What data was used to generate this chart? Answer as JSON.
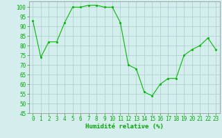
{
  "x": [
    0,
    1,
    2,
    3,
    4,
    5,
    6,
    7,
    8,
    9,
    10,
    11,
    12,
    13,
    14,
    15,
    16,
    17,
    18,
    19,
    20,
    21,
    22,
    23
  ],
  "y": [
    93,
    74,
    82,
    82,
    92,
    100,
    100,
    101,
    101,
    100,
    100,
    92,
    70,
    68,
    56,
    54,
    60,
    63,
    63,
    75,
    78,
    80,
    84,
    78
  ],
  "line_color": "#00bb00",
  "marker_color": "#00bb00",
  "bg_color": "#d4eeee",
  "grid_color": "#aacccc",
  "xlabel": "Humidité relative (%)",
  "xlabel_color": "#00aa00",
  "ylim": [
    45,
    103
  ],
  "yticks": [
    45,
    50,
    55,
    60,
    65,
    70,
    75,
    80,
    85,
    90,
    95,
    100
  ],
  "xlim": [
    -0.5,
    23.5
  ],
  "tick_fontsize": 5.5,
  "xlabel_fontsize": 6.5
}
